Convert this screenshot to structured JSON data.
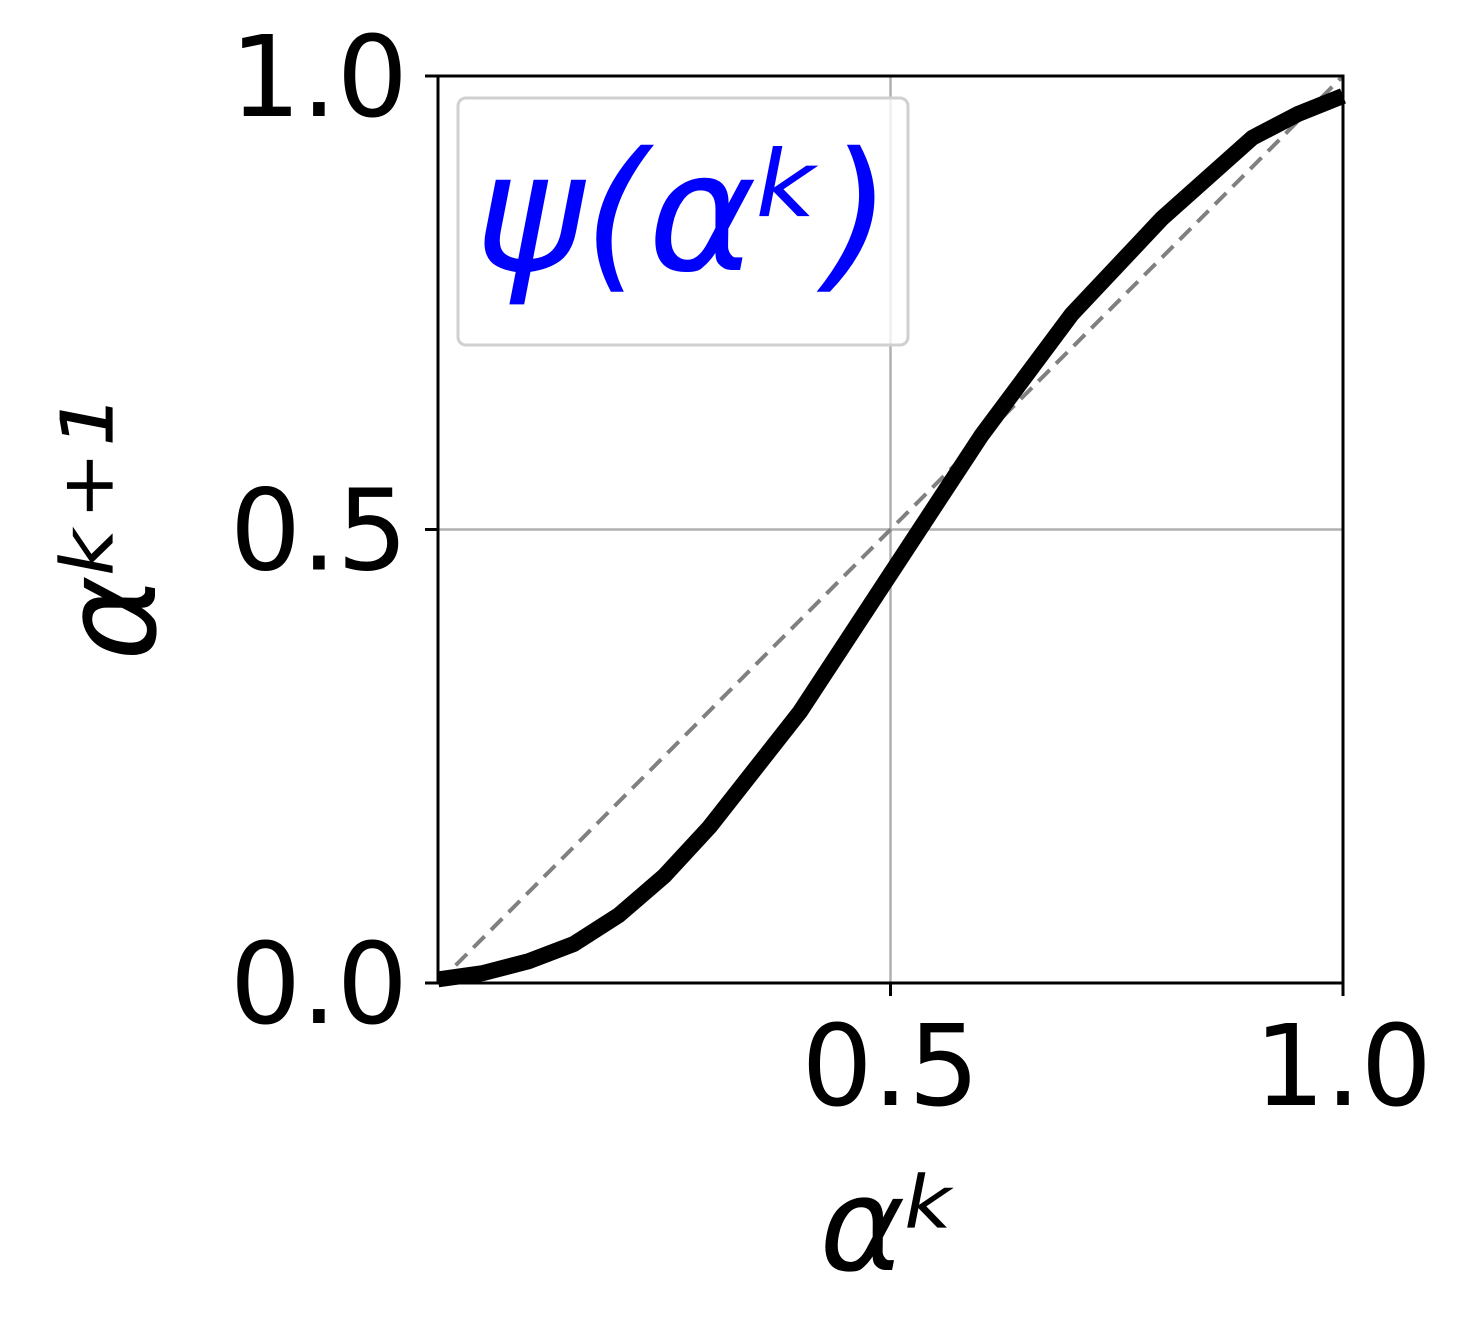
{
  "chart_data": {
    "type": "line",
    "xlabel": "αᵏ",
    "ylabel": "αᵏ⁺¹",
    "x": [
      0,
      0.05,
      0.1,
      0.15,
      0.2,
      0.25,
      0.3,
      0.4,
      0.5,
      0.6,
      0.7,
      0.8,
      0.9,
      0.95,
      1.0
    ],
    "series": [
      {
        "name": "ψ(αᵏ)",
        "color": "#000000",
        "values": [
          0.004,
          0.011,
          0.024,
          0.043,
          0.075,
          0.118,
          0.172,
          0.299,
          0.451,
          0.603,
          0.737,
          0.843,
          0.932,
          0.958,
          0.978
        ]
      }
    ],
    "reference_line": {
      "x": [
        0,
        1
      ],
      "values": [
        0,
        1
      ],
      "color": "#808080",
      "dashed": true
    },
    "legend_color": "#0000ff",
    "xlim": [
      0,
      1
    ],
    "ylim": [
      0,
      1
    ],
    "xticks": [
      {
        "value": 0.5,
        "label": "0.5"
      },
      {
        "value": 1,
        "label": "1.0"
      }
    ],
    "yticks": [
      {
        "value": 0,
        "label": "0.0"
      },
      {
        "value": 0.5,
        "label": "0.5"
      },
      {
        "value": 1,
        "label": "1.0"
      }
    ],
    "grid": true,
    "legend": "upper left"
  }
}
